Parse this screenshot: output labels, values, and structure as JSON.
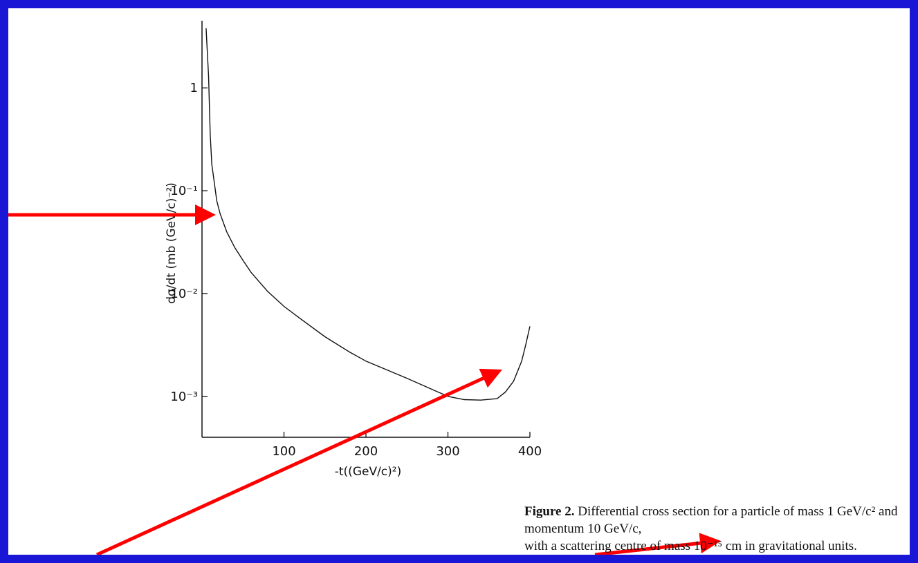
{
  "chart_data": {
    "type": "line",
    "xlabel": "-t((GeV/c)²)",
    "ylabel": "dσ/dt (mb (GeV/c)⁻²)",
    "x_ticks": [
      100,
      200,
      300,
      400
    ],
    "y_ticks": [
      {
        "value": 1,
        "label": "1"
      },
      {
        "value": 0.1,
        "label": "10⁻¹"
      },
      {
        "value": 0.01,
        "label": "10⁻²"
      },
      {
        "value": 0.001,
        "label": "10⁻³"
      }
    ],
    "y_scale": "log",
    "xlim": [
      0,
      400
    ],
    "ylim": [
      0.0004,
      4.5
    ],
    "grid": false,
    "series": [
      {
        "x": [
          5,
          8,
          10,
          12,
          15,
          18,
          22,
          30,
          40,
          50,
          60,
          80,
          100,
          120,
          150,
          180,
          200,
          250,
          300,
          320,
          340,
          360,
          370,
          380,
          390,
          395,
          400
        ],
        "y": [
          3.8,
          1.3,
          0.35,
          0.18,
          0.12,
          0.08,
          0.06,
          0.04,
          0.028,
          0.021,
          0.016,
          0.0105,
          0.0075,
          0.0057,
          0.0038,
          0.0027,
          0.0022,
          0.0015,
          0.001,
          0.00093,
          0.00092,
          0.00095,
          0.0011,
          0.0014,
          0.0022,
          0.0032,
          0.0048
        ]
      }
    ]
  },
  "caption": {
    "figure_label": "Figure 2.",
    "line1_text": "Differential cross section for a particle of mass 1 GeV/c² and momentum 10 GeV/c,",
    "line2_text": "with a scattering centre of mass 10⁻¹⁵ cm in gravitational units."
  },
  "annotations": {
    "arrow_color": "#ff0000"
  }
}
